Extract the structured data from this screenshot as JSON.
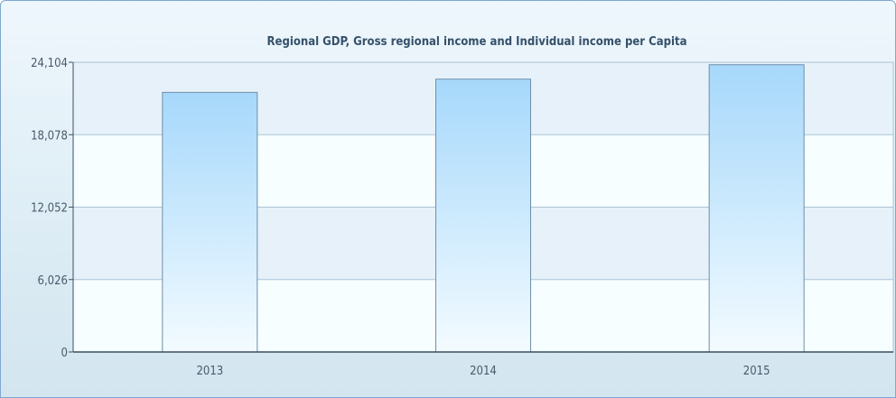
{
  "chart_data": {
    "type": "bar",
    "title": "Regional GDP, Gross regional income and Individual income per Capita",
    "categories": [
      "2013",
      "2014",
      "2015"
    ],
    "values": [
      21600,
      22700,
      23900
    ],
    "ylim": [
      0,
      24104
    ],
    "yticks": [
      "0",
      "6,026",
      "12,052",
      "18,078",
      "24,104"
    ],
    "ytick_values": [
      0,
      6026,
      12052,
      18078,
      24104
    ],
    "xlabel": "",
    "ylabel": "",
    "grid": true,
    "legend": "none",
    "colors": {
      "bar_top": "#a6d8fb",
      "bar_bottom": "#f3fbff",
      "bar_stroke": "#6f8fa8",
      "band_a": "#f6feff",
      "band_b": "#e6f1fa",
      "grid": "#aac3d6",
      "axis": "#3c4f5e"
    }
  }
}
